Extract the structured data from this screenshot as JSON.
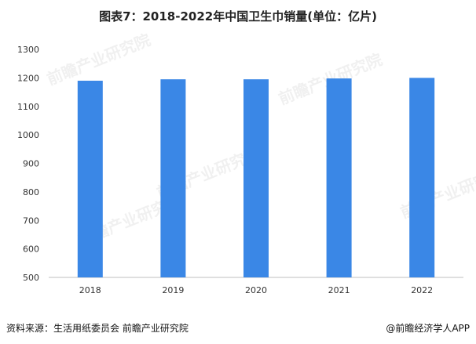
{
  "title": "图表7：2018-2022年中国卫生巾销量(单位：亿片)",
  "source": "资料来源：生活用纸委员会 前瞻产业研究院",
  "credit": "@前瞻经济学人APP",
  "watermark": "前瞻产业研究院",
  "colors": {
    "bar": "#3a87e6",
    "axis": "#bfbfbf"
  },
  "chart_data": {
    "type": "bar",
    "categories": [
      "2018",
      "2019",
      "2020",
      "2021",
      "2022"
    ],
    "values": [
      1190,
      1195,
      1195,
      1198,
      1200
    ],
    "ylim": [
      500,
      1300
    ],
    "yticks": [
      500,
      600,
      700,
      800,
      900,
      1000,
      1100,
      1200,
      1300
    ],
    "grid": false,
    "legend": "none"
  }
}
